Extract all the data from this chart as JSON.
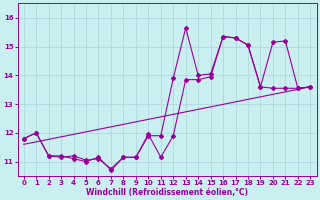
{
  "xlabel": "Windchill (Refroidissement éolien,°C)",
  "xlim": [
    -0.5,
    23.5
  ],
  "ylim": [
    10.5,
    16.5
  ],
  "yticks": [
    11,
    12,
    13,
    14,
    15,
    16
  ],
  "xticks": [
    0,
    1,
    2,
    3,
    4,
    5,
    6,
    7,
    8,
    9,
    10,
    11,
    12,
    13,
    14,
    15,
    16,
    17,
    18,
    19,
    20,
    21,
    22,
    23
  ],
  "bg_color": "#c9eff1",
  "line_color": "#990099",
  "grid_color": "#b0d8da",
  "series1_x": [
    0,
    1,
    2,
    3,
    4,
    5,
    6,
    7,
    8,
    9,
    10,
    11,
    12,
    13,
    14,
    15,
    16,
    17,
    18,
    19,
    20,
    21,
    22,
    23
  ],
  "series1_y": [
    11.8,
    12.0,
    11.2,
    11.2,
    11.1,
    11.0,
    11.15,
    10.7,
    11.15,
    11.15,
    11.9,
    11.9,
    13.9,
    15.65,
    14.0,
    14.05,
    15.35,
    15.3,
    15.05,
    13.6,
    15.15,
    15.2,
    13.55,
    13.6
  ],
  "series2_x": [
    0,
    1,
    2,
    3,
    4,
    5,
    6,
    7,
    8,
    9,
    10,
    11,
    12,
    13,
    14,
    15,
    16,
    17,
    18,
    19,
    20,
    21,
    22,
    23
  ],
  "series2_y": [
    11.8,
    12.0,
    11.2,
    11.15,
    11.2,
    11.05,
    11.1,
    10.75,
    11.15,
    11.15,
    11.95,
    11.15,
    11.9,
    13.85,
    13.85,
    13.95,
    15.35,
    15.3,
    15.05,
    13.6,
    13.55,
    13.55,
    13.55,
    13.6
  ],
  "trend_x": [
    0,
    23
  ],
  "trend_y": [
    11.6,
    13.6
  ]
}
